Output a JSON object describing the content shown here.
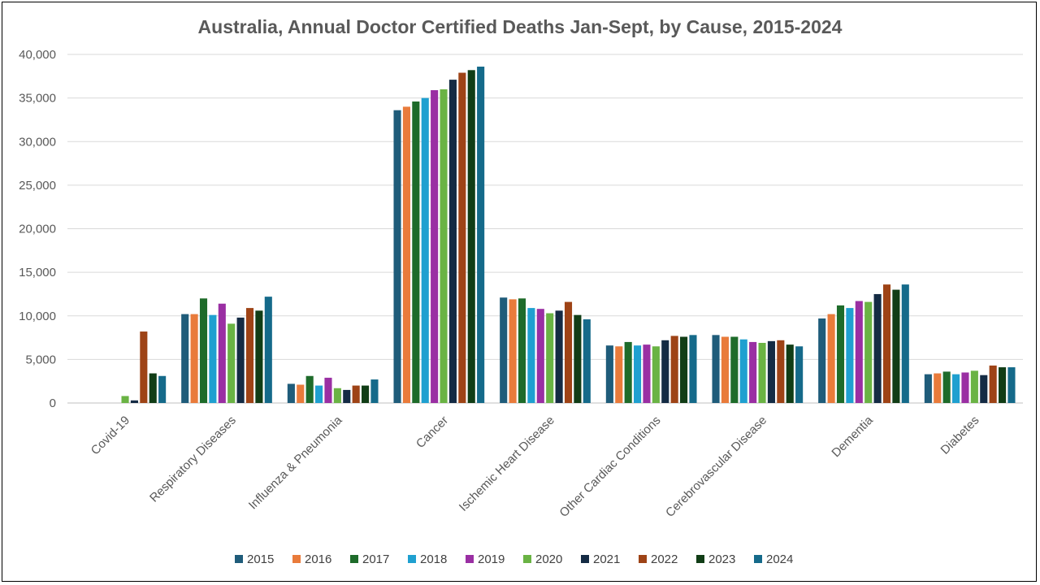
{
  "chart_data": {
    "type": "bar",
    "title": "Australia, Annual Doctor Certified Deaths Jan-Sept, by Cause, 2015-2024",
    "xlabel": "",
    "ylabel": "",
    "ylim": [
      0,
      40000
    ],
    "yticks": [
      0,
      5000,
      10000,
      15000,
      20000,
      25000,
      30000,
      35000,
      40000
    ],
    "ytick_labels": [
      "0",
      "5,000",
      "10,000",
      "15,000",
      "20,000",
      "25,000",
      "30,000",
      "35,000",
      "40,000"
    ],
    "grid": true,
    "legend_position": "bottom",
    "categories": [
      "Covid-19",
      "Respiratory Diseases",
      "Influenza & Pneumonia",
      "Cancer",
      "Ischemic Heart Disease",
      "Other Cardiac Conditions",
      "Cerebrovascular Disease",
      "Dementia",
      "Diabetes"
    ],
    "series": [
      {
        "name": "2015",
        "color": "#1F5C7A",
        "values": [
          0,
          10200,
          2200,
          33600,
          12100,
          6600,
          7800,
          9700,
          3300
        ]
      },
      {
        "name": "2016",
        "color": "#E97B3B",
        "values": [
          0,
          10200,
          2100,
          34000,
          11900,
          6500,
          7600,
          10200,
          3400
        ]
      },
      {
        "name": "2017",
        "color": "#1E6B2A",
        "values": [
          0,
          12000,
          3100,
          34600,
          12000,
          7000,
          7600,
          11200,
          3600
        ]
      },
      {
        "name": "2018",
        "color": "#1FA0D0",
        "values": [
          0,
          10100,
          2000,
          35000,
          10900,
          6600,
          7300,
          10900,
          3300
        ]
      },
      {
        "name": "2019",
        "color": "#9A2FA3",
        "values": [
          0,
          11400,
          2900,
          35900,
          10800,
          6700,
          7000,
          11700,
          3500
        ]
      },
      {
        "name": "2020",
        "color": "#6AB344",
        "values": [
          800,
          9100,
          1700,
          36000,
          10300,
          6500,
          6900,
          11600,
          3700
        ]
      },
      {
        "name": "2021",
        "color": "#142B44",
        "values": [
          300,
          9800,
          1500,
          37100,
          10600,
          7200,
          7100,
          12500,
          3200
        ]
      },
      {
        "name": "2022",
        "color": "#9E4316",
        "values": [
          8200,
          10900,
          2000,
          37900,
          11600,
          7700,
          7200,
          13600,
          4300
        ]
      },
      {
        "name": "2023",
        "color": "#113D16",
        "values": [
          3400,
          10600,
          2000,
          38200,
          10100,
          7600,
          6700,
          13000,
          4100
        ]
      },
      {
        "name": "2024",
        "color": "#156A8A",
        "values": [
          3100,
          12200,
          2700,
          38600,
          9600,
          7800,
          6500,
          13600,
          4100
        ]
      }
    ]
  }
}
